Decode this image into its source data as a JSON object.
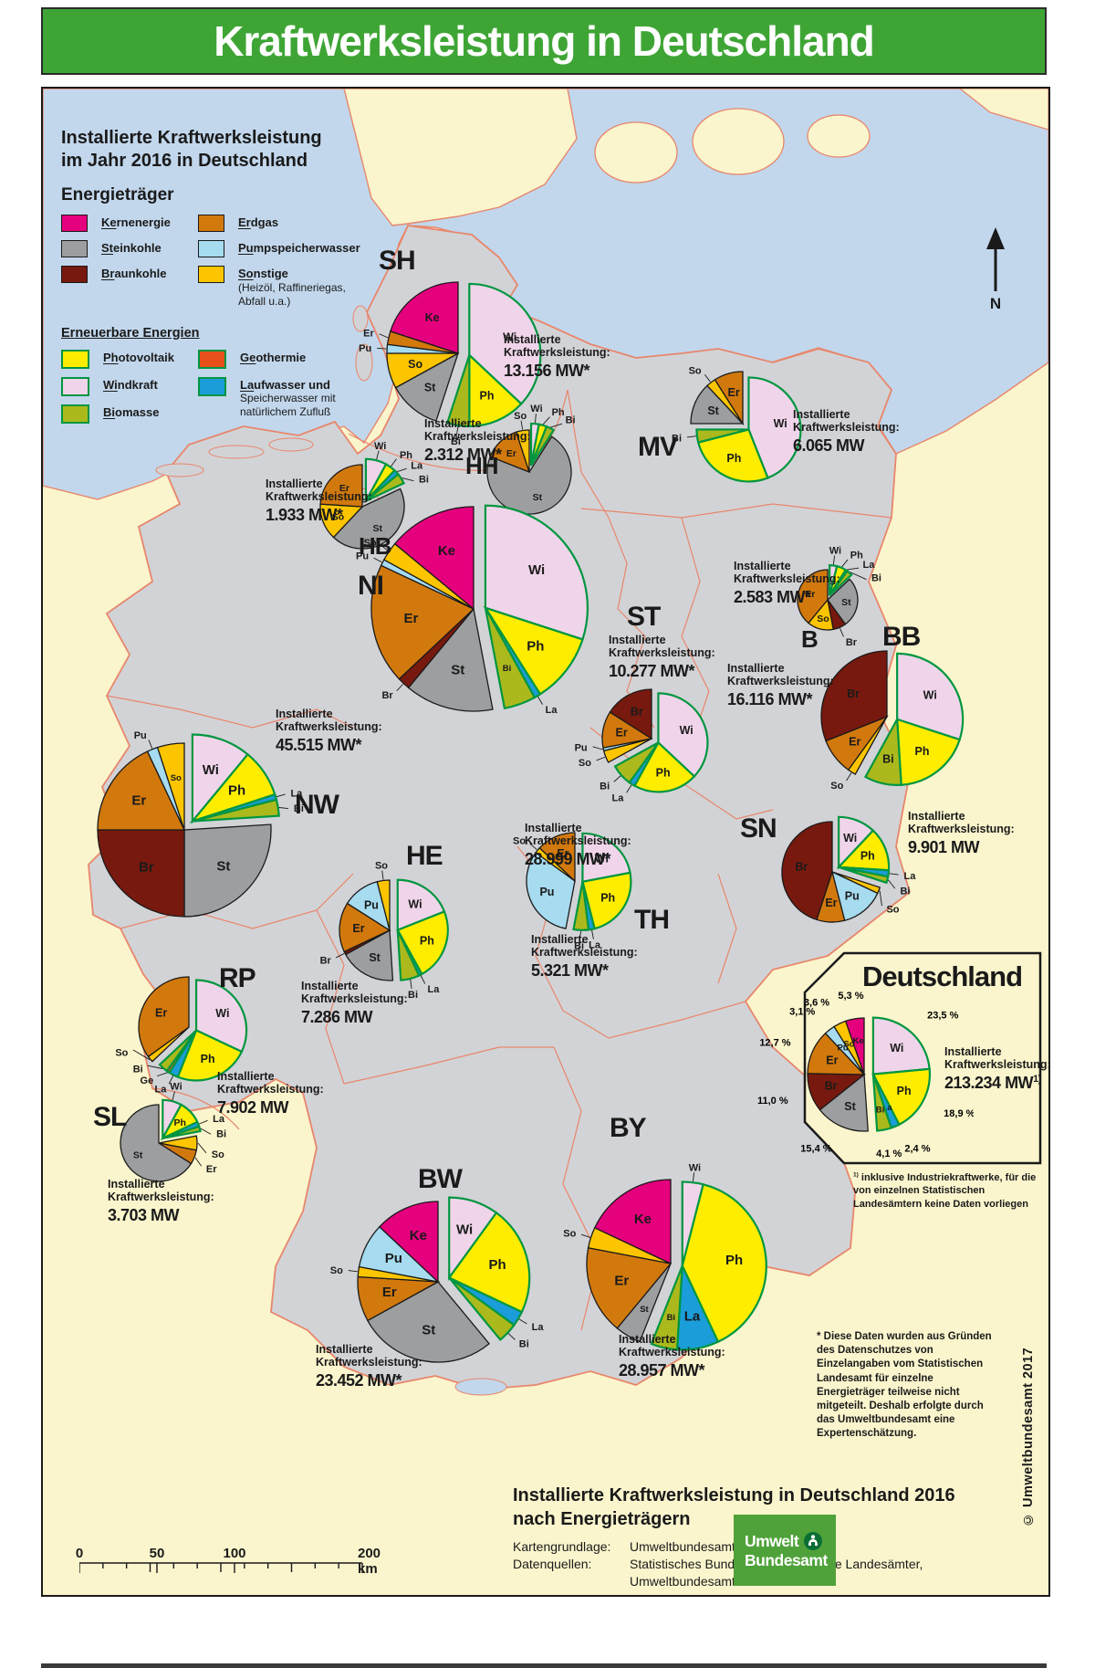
{
  "title": "Kraftwerksleistung in Deutschland",
  "colors": {
    "header": "#3EA535",
    "sea": "#C2D7EC",
    "land": "#FAF5CD",
    "germany": "#D2D3D6",
    "coast": "#E8866B",
    "renew_border": "#009640",
    "Ke": "#E5007D",
    "St": "#9C9EA0",
    "Br": "#77190E",
    "Er": "#D2790D",
    "Pu": "#A6DBF0",
    "So": "#FCC500",
    "Ph": "#FFED00",
    "Ge": "#E8501B",
    "Wi": "#F0D5EA",
    "La": "#1A9DD9",
    "Bi": "#ABB91C"
  },
  "legend": {
    "title_line1": "Installierte Kraftwerksleistung",
    "title_line2": "im Jahr 2016 in Deutschland",
    "subtitle": "Energieträger",
    "conventional_col1": [
      {
        "code": "Ke",
        "u": "Ke",
        "rest": "rnenergie"
      },
      {
        "code": "St",
        "u": "St",
        "rest": "einkohle"
      },
      {
        "code": "Br",
        "u": "Br",
        "rest": "aunkohle"
      }
    ],
    "conventional_col2": [
      {
        "code": "Er",
        "u": "Er",
        "rest": "dgas"
      },
      {
        "code": "Pu",
        "u": "Pu",
        "rest": "mpspeicherwasser"
      },
      {
        "code": "So",
        "u": "So",
        "rest": "nstige",
        "note": "(Heizöl, Raffineriegas, Abfall u.a.)"
      }
    ],
    "renewable_title": "Erneuerbare Energien",
    "renewable_col1": [
      {
        "code": "Ph",
        "u": "Ph",
        "rest": "otovoltaik"
      },
      {
        "code": "Wi",
        "u": "Wi",
        "rest": "ndkraft"
      },
      {
        "code": "Bi",
        "u": "Bi",
        "rest": "omasse"
      }
    ],
    "renewable_col2": [
      {
        "code": "Ge",
        "u": "Ge",
        "rest": "othermie"
      },
      {
        "code": "La",
        "u": "La",
        "rest": "ufwasser und",
        "note": "Speicherwasser mit natürlichem Zufluß"
      }
    ]
  },
  "capacity_label": "Installierte Kraftwerksleistung:",
  "states": [
    {
      "code": "SH",
      "capacity": "13.156 MW*",
      "slices": [
        [
          "Wi",
          37
        ],
        [
          "Ph",
          13
        ],
        [
          "Bi",
          5
        ],
        [
          "St",
          12
        ],
        [
          "So",
          8
        ],
        [
          "Pu",
          2
        ],
        [
          "Er",
          3
        ],
        [
          "Ke",
          20
        ]
      ]
    },
    {
      "code": "MV",
      "capacity": "6.065 MW",
      "slices": [
        [
          "Wi",
          44
        ],
        [
          "Ph",
          27
        ],
        [
          "Bi",
          4
        ],
        [
          "St",
          13
        ],
        [
          "So",
          3
        ],
        [
          "Er",
          9
        ]
      ]
    },
    {
      "code": "HH",
      "capacity": "2.312 MW*",
      "slices": [
        [
          "Wi",
          3
        ],
        [
          "Ph",
          3
        ],
        [
          "Bi",
          3
        ],
        [
          "St",
          72
        ],
        [
          "Er",
          14
        ],
        [
          "So",
          5
        ]
      ]
    },
    {
      "code": "HB",
      "capacity": "1.933 MW*",
      "slices": [
        [
          "Wi",
          8
        ],
        [
          "Ph",
          4
        ],
        [
          "La",
          2
        ],
        [
          "Bi",
          4
        ],
        [
          "St",
          44
        ],
        [
          "So",
          14
        ],
        [
          "Er",
          24
        ]
      ]
    },
    {
      "code": "NI",
      "capacity": "28.999 MW*",
      "slices": [
        [
          "Wi",
          30
        ],
        [
          "Ph",
          11
        ],
        [
          "La",
          1
        ],
        [
          "Bi",
          5
        ],
        [
          "St",
          14
        ],
        [
          "Br",
          2
        ],
        [
          "Er",
          19
        ],
        [
          "Pu",
          1
        ],
        [
          "So",
          3
        ],
        [
          "Ke",
          14
        ]
      ]
    },
    {
      "code": "ST",
      "capacity": "10.277 MW*",
      "slices": [
        [
          "Wi",
          37
        ],
        [
          "Ph",
          21
        ],
        [
          "La",
          2
        ],
        [
          "Bi",
          7
        ],
        [
          "So",
          4
        ],
        [
          "Pu",
          1
        ],
        [
          "Er",
          12
        ],
        [
          "Br",
          16
        ]
      ]
    },
    {
      "code": "B",
      "capacity": "2.583 MW*",
      "slices": [
        [
          "Wi",
          4
        ],
        [
          "Ph",
          5
        ],
        [
          "La",
          1
        ],
        [
          "Bi",
          3
        ],
        [
          "St",
          27
        ],
        [
          "Br",
          7
        ],
        [
          "So",
          14
        ],
        [
          "Er",
          39
        ]
      ]
    },
    {
      "code": "BB",
      "capacity": "16.116 MW*",
      "slices": [
        [
          "Wi",
          30
        ],
        [
          "Ph",
          19
        ],
        [
          "Bi",
          9
        ],
        [
          "So",
          2
        ],
        [
          "Er",
          9
        ],
        [
          "Br",
          31
        ]
      ]
    },
    {
      "code": "NW",
      "capacity": "45.515 MW*",
      "slices": [
        [
          "Wi",
          11
        ],
        [
          "Ph",
          9
        ],
        [
          "La",
          1
        ],
        [
          "Bi",
          3
        ],
        [
          "St",
          26
        ],
        [
          "Br",
          25
        ],
        [
          "Er",
          18
        ],
        [
          "Pu",
          2
        ],
        [
          "So",
          5
        ]
      ]
    },
    {
      "code": "HE",
      "capacity": "7.286 MW",
      "slices": [
        [
          "Wi",
          19
        ],
        [
          "Ph",
          23
        ],
        [
          "La",
          1
        ],
        [
          "Bi",
          6
        ],
        [
          "St",
          18
        ],
        [
          "Br",
          1
        ],
        [
          "Er",
          16
        ],
        [
          "Pu",
          12
        ],
        [
          "So",
          4
        ]
      ]
    },
    {
      "code": "TH",
      "capacity": "5.321 MW*",
      "slices": [
        [
          "Wi",
          22
        ],
        [
          "Ph",
          24
        ],
        [
          "La",
          2
        ],
        [
          "Bi",
          5
        ],
        [
          "Pu",
          32
        ],
        [
          "So",
          2
        ],
        [
          "Er",
          13
        ]
      ]
    },
    {
      "code": "SN",
      "capacity": "9.901 MW",
      "slices": [
        [
          "Wi",
          12
        ],
        [
          "Ph",
          14
        ],
        [
          "La",
          2
        ],
        [
          "Bi",
          2
        ],
        [
          "So",
          2
        ],
        [
          "Pu",
          14
        ],
        [
          "Er",
          9
        ],
        [
          "Br",
          45
        ]
      ]
    },
    {
      "code": "RP",
      "capacity": "7.902 MW",
      "slices": [
        [
          "Wi",
          32
        ],
        [
          "Ph",
          24
        ],
        [
          "La",
          3
        ],
        [
          "Ge",
          1
        ],
        [
          "Bi",
          3
        ],
        [
          "So",
          2
        ],
        [
          "Er",
          35
        ]
      ]
    },
    {
      "code": "SL",
      "capacity": "3.703 MW",
      "slices": [
        [
          "Wi",
          8
        ],
        [
          "Ph",
          10
        ],
        [
          "La",
          2
        ],
        [
          "Bi",
          2
        ],
        [
          "So",
          6
        ],
        [
          "Er",
          6
        ],
        [
          "St",
          66
        ]
      ]
    },
    {
      "code": "BW",
      "capacity": "23.452 MW*",
      "slices": [
        [
          "Wi",
          10
        ],
        [
          "Ph",
          22
        ],
        [
          "La",
          3
        ],
        [
          "Bi",
          4
        ],
        [
          "St",
          28
        ],
        [
          "Er",
          9
        ],
        [
          "So",
          2
        ],
        [
          "Pu",
          9
        ],
        [
          "Ke",
          13
        ]
      ]
    },
    {
      "code": "BY",
      "capacity": "28.957 MW*",
      "slices": [
        [
          "Wi",
          4
        ],
        [
          "Ph",
          39
        ],
        [
          "La",
          8
        ],
        [
          "Bi",
          5
        ],
        [
          "St",
          5
        ],
        [
          "Er",
          17
        ],
        [
          "So",
          4
        ],
        [
          "Ke",
          18
        ]
      ]
    }
  ],
  "inset": {
    "title": "Deutschland",
    "capacity_value": "213.234 MW",
    "capacity_sup": "1)",
    "slices": [
      [
        "Wi",
        23.5,
        "23,5 %"
      ],
      [
        "Ph",
        18.9,
        "18,9 %"
      ],
      [
        "La",
        2.4,
        "2,4 %"
      ],
      [
        "Bi",
        4.1,
        "4,1 %"
      ],
      [
        "St",
        15.4,
        "15,4 %"
      ],
      [
        "Br",
        11.0,
        "11,0 %"
      ],
      [
        "Er",
        12.7,
        "12,7 %"
      ],
      [
        "Pu",
        3.1,
        "3,1 %"
      ],
      [
        "So",
        3.6,
        "3,6 %"
      ],
      [
        "Ke",
        5.3,
        "5,3 %"
      ]
    ],
    "footnote_sup": "1)",
    "footnote_text": " inklusive Industriekraftwerke, für die von einzelnen Statistischen Landesämtern keine Daten vorliegen"
  },
  "chart_data": {
    "type": "pie",
    "title": "Deutschland — Installierte Kraftwerksleistung 2016",
    "categories": [
      "Windkraft",
      "Photovoltaik",
      "Laufwasser und Speicherwasser",
      "Biomasse",
      "Steinkohle",
      "Braunkohle",
      "Erdgas",
      "Pumpspeicherwasser",
      "Sonstige",
      "Kernenergie"
    ],
    "values": [
      23.5,
      18.9,
      2.4,
      4.1,
      15.4,
      11.0,
      12.7,
      3.1,
      3.6,
      5.3
    ],
    "total": "213.234 MW"
  },
  "footnote_star": "* Diese Daten wurden aus Gründen des Datenschutzes von Einzelangaben vom Statistischen Landesamt für einzelne Energieträger teilweise nicht mitgeteilt. Deshalb erfolgte durch das Umwelt­bundesamt eine Expertenschätzung.",
  "copyright": "© Umweltbundesamt 2017",
  "north_label": "N",
  "scalebar": {
    "labels": [
      "0",
      "50",
      "100",
      "200 km"
    ]
  },
  "bottom": {
    "title_line1": "Installierte Kraftwerksleistung in Deutschland 2016",
    "title_line2": "nach Energieträgern",
    "map_source_label": "Kartengrundlage:",
    "map_source": "Umweltbundesamt",
    "data_source_label": "Datenquellen:",
    "data_source_1": "Statistisches Bundesamt, Statistische Landesämter,",
    "data_source_2": "Umweltbundesamt"
  },
  "logo": {
    "line1": "Umwelt",
    "line2": "Bundesamt"
  }
}
